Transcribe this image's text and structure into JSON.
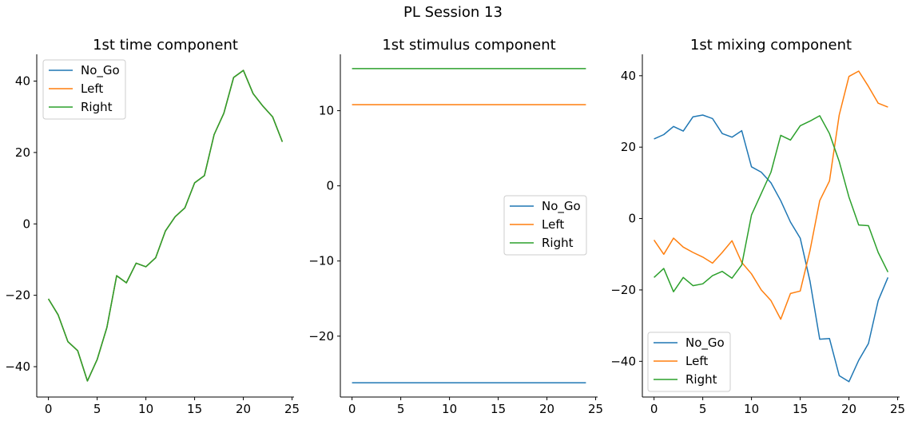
{
  "figure": {
    "title": "PL Session 13"
  },
  "colors": {
    "No_Go": "#1f77b4",
    "Left": "#ff7f0e",
    "Right": "#2ca02c"
  },
  "chart_data": [
    {
      "type": "line",
      "title": "1st time component",
      "xlim": [
        -1.2,
        25.2
      ],
      "ylim": [
        -48.5,
        47.5
      ],
      "xticks": [
        0,
        5,
        10,
        15,
        20,
        25
      ],
      "yticks": [
        -40,
        -20,
        0,
        20,
        40
      ],
      "legend": "top-left",
      "x": [
        0,
        1,
        2,
        3,
        4,
        5,
        6,
        7,
        8,
        9,
        10,
        11,
        12,
        13,
        14,
        15,
        16,
        17,
        18,
        19,
        20,
        21,
        22,
        23,
        24
      ],
      "series": [
        {
          "name": "No_Go",
          "color": "#1f77b4",
          "values": [
            -21,
            -25.5,
            -33,
            -35.5,
            -44,
            -38,
            -29,
            -14.5,
            -16.5,
            -11,
            -12,
            -9.5,
            -2,
            2,
            4.5,
            11.5,
            13.5,
            25,
            31,
            41,
            43,
            36.5,
            33,
            30,
            23
          ]
        },
        {
          "name": "Left",
          "color": "#ff7f0e",
          "values": [
            -21,
            -25.5,
            -33,
            -35.5,
            -44,
            -38,
            -29,
            -14.5,
            -16.5,
            -11,
            -12,
            -9.5,
            -2,
            2,
            4.5,
            11.5,
            13.5,
            25,
            31,
            41,
            43,
            36.5,
            33,
            30,
            23
          ]
        },
        {
          "name": "Right",
          "color": "#2ca02c",
          "values": [
            -21,
            -25.5,
            -33,
            -35.5,
            -44,
            -38,
            -29,
            -14.5,
            -16.5,
            -11,
            -12,
            -9.5,
            -2,
            2,
            4.5,
            11.5,
            13.5,
            25,
            31,
            41,
            43,
            36.5,
            33,
            30,
            23
          ]
        }
      ]
    },
    {
      "type": "line",
      "title": "1st stimulus component",
      "xlim": [
        -1.2,
        25.2
      ],
      "ylim": [
        -28.1,
        17.5
      ],
      "xticks": [
        0,
        5,
        10,
        15,
        20,
        25
      ],
      "yticks": [
        -20,
        -10,
        0,
        10
      ],
      "legend": "center-right",
      "x": [
        0,
        1,
        2,
        3,
        4,
        5,
        6,
        7,
        8,
        9,
        10,
        11,
        12,
        13,
        14,
        15,
        16,
        17,
        18,
        19,
        20,
        21,
        22,
        23,
        24
      ],
      "series": [
        {
          "name": "No_Go",
          "color": "#1f77b4",
          "values": [
            -26.2,
            -26.2,
            -26.2,
            -26.2,
            -26.2,
            -26.2,
            -26.2,
            -26.2,
            -26.2,
            -26.2,
            -26.2,
            -26.2,
            -26.2,
            -26.2,
            -26.2,
            -26.2,
            -26.2,
            -26.2,
            -26.2,
            -26.2,
            -26.2,
            -26.2,
            -26.2,
            -26.2,
            -26.2
          ]
        },
        {
          "name": "Left",
          "color": "#ff7f0e",
          "values": [
            10.8,
            10.8,
            10.8,
            10.8,
            10.8,
            10.8,
            10.8,
            10.8,
            10.8,
            10.8,
            10.8,
            10.8,
            10.8,
            10.8,
            10.8,
            10.8,
            10.8,
            10.8,
            10.8,
            10.8,
            10.8,
            10.8,
            10.8,
            10.8,
            10.8
          ]
        },
        {
          "name": "Right",
          "color": "#2ca02c",
          "values": [
            15.6,
            15.6,
            15.6,
            15.6,
            15.6,
            15.6,
            15.6,
            15.6,
            15.6,
            15.6,
            15.6,
            15.6,
            15.6,
            15.6,
            15.6,
            15.6,
            15.6,
            15.6,
            15.6,
            15.6,
            15.6,
            15.6,
            15.6,
            15.6,
            15.6
          ]
        }
      ]
    },
    {
      "type": "line",
      "title": "1st mixing component",
      "xlim": [
        -1.2,
        25.2
      ],
      "ylim": [
        -50,
        46
      ],
      "xticks": [
        0,
        5,
        10,
        15,
        20,
        25
      ],
      "yticks": [
        -40,
        -20,
        0,
        20,
        40
      ],
      "legend": "bottom-left",
      "x": [
        0,
        1,
        2,
        3,
        4,
        5,
        6,
        7,
        8,
        9,
        10,
        11,
        12,
        13,
        14,
        15,
        16,
        17,
        18,
        19,
        20,
        21,
        22,
        23,
        24
      ],
      "series": [
        {
          "name": "No_Go",
          "color": "#1f77b4",
          "values": [
            22.3,
            23.5,
            25.8,
            24.5,
            28.5,
            29,
            28,
            23.8,
            22.8,
            24.6,
            14.5,
            13,
            10,
            5,
            -1,
            -5.5,
            -17.5,
            -33.8,
            -33.6,
            -44,
            -45.7,
            -39.7,
            -35,
            -23,
            -16.5
          ]
        },
        {
          "name": "Left",
          "color": "#ff7f0e",
          "values": [
            -6,
            -10,
            -5.5,
            -8,
            -9.5,
            -10.8,
            -12.5,
            -9.5,
            -6.2,
            -12.3,
            -15.5,
            -20,
            -23,
            -28.2,
            -21,
            -20.3,
            -9,
            5,
            10.5,
            29,
            39.8,
            41.3,
            37,
            32.3,
            31.2
          ]
        },
        {
          "name": "Right",
          "color": "#2ca02c",
          "values": [
            -16.5,
            -14,
            -20.5,
            -16.5,
            -18.8,
            -18.3,
            -16,
            -14.8,
            -16.7,
            -13,
            1,
            7,
            13,
            23.3,
            22,
            26,
            27.3,
            28.8,
            23.8,
            16,
            6,
            -1.8,
            -2,
            -9.5,
            -15
          ]
        }
      ]
    }
  ]
}
